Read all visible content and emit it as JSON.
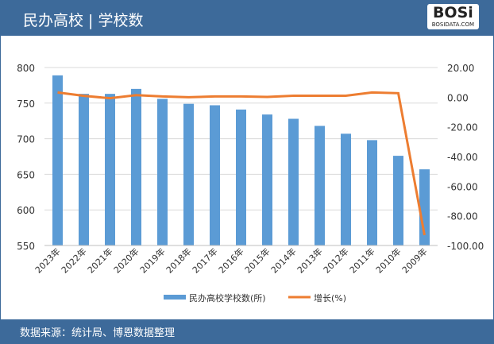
{
  "header": {
    "title": "民办高校 | 学校数",
    "logo": "BOSi",
    "logo_sub": "BOSIDATA.COM"
  },
  "footer": {
    "source": "数据来源：统计局、博恩数据整理"
  },
  "colors": {
    "bar": "#5b9bd5",
    "line": "#ed7d31",
    "header": "#3d6a9a"
  },
  "chart_data": {
    "type": "bar+line",
    "categories": [
      "2023年",
      "2022年",
      "2021年",
      "2020年",
      "2019年",
      "2018年",
      "2017年",
      "2016年",
      "2015年",
      "2014年",
      "2013年",
      "2012年",
      "2011年",
      "2010年",
      "2009年"
    ],
    "series": [
      {
        "name": "民办高校学校数(所)",
        "type": "bar",
        "axis": "left",
        "values": [
          789,
          763,
          763,
          770,
          756,
          749,
          747,
          741,
          734,
          728,
          718,
          707,
          698,
          676,
          657
        ]
      },
      {
        "name": "增长(%)",
        "type": "line",
        "axis": "right",
        "values": [
          3.2,
          0.9,
          -0.7,
          1.4,
          0.5,
          0.0,
          0.5,
          0.5,
          0.2,
          1.0,
          1.0,
          1.0,
          3.2,
          2.7,
          -93.0
        ]
      }
    ],
    "ylim_left": [
      550,
      800
    ],
    "yticks_left": [
      "550",
      "600",
      "650",
      "700",
      "750",
      "800"
    ],
    "ylim_right": [
      -100,
      20
    ],
    "yticks_right": [
      "-100.00",
      "-80.00",
      "-60.00",
      "-40.00",
      "-20.00",
      "0.00",
      "20.00"
    ],
    "grid": true,
    "legend": "bottom"
  }
}
